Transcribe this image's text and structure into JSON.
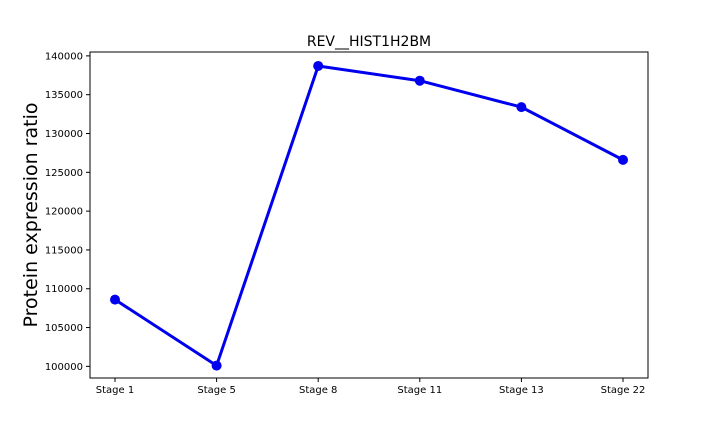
{
  "chart_data": {
    "type": "line",
    "title": "REV__HIST1H2BM",
    "xlabel": "",
    "ylabel": "Protein expression ratio",
    "categories": [
      "Stage 1",
      "Stage 5",
      "Stage 8",
      "Stage 11",
      "Stage 13",
      "Stage 22"
    ],
    "series": [
      {
        "values": [
          108600,
          100100,
          138700,
          136800,
          133400,
          126600
        ]
      }
    ],
    "ylim": [
      98500,
      140500
    ],
    "yticks": [
      100000,
      105000,
      110000,
      115000,
      120000,
      125000,
      130000,
      135000,
      140000
    ],
    "grid": false,
    "colors": {
      "line": "#0000ee",
      "marker": "#0000ee"
    }
  }
}
